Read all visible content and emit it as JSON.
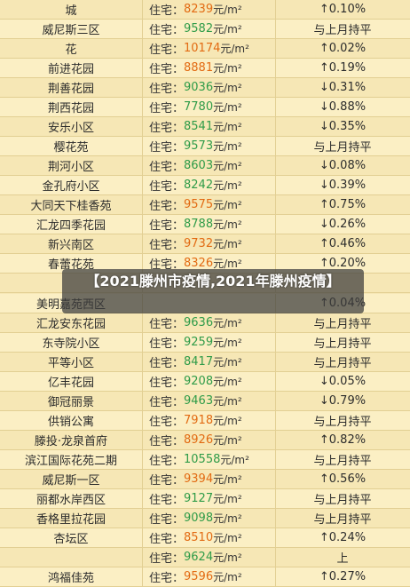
{
  "overlay_title": "【2021滕州市疫情,2021年滕州疫情】",
  "price_label": "住宅：",
  "unit": "元/m²",
  "rows": [
    {
      "name": "城",
      "price": "8239",
      "price_color": "orange",
      "change": "↑0.10%"
    },
    {
      "name": "威尼斯三区",
      "price": "9582",
      "price_color": "green",
      "change": "与上月持平"
    },
    {
      "name": "花",
      "price": "10174",
      "price_color": "orange",
      "change": "↑0.02%"
    },
    {
      "name": "前进花园",
      "price": "8881",
      "price_color": "orange",
      "change": "↑0.19%"
    },
    {
      "name": "荆善花园",
      "price": "9036",
      "price_color": "green",
      "change": "↓0.31%"
    },
    {
      "name": "荆西花园",
      "price": "7780",
      "price_color": "green",
      "change": "↓0.88%"
    },
    {
      "name": "安乐小区",
      "price": "8541",
      "price_color": "green",
      "change": "↓0.35%"
    },
    {
      "name": "樱花苑",
      "price": "9573",
      "price_color": "green",
      "change": "与上月持平"
    },
    {
      "name": "荆河小区",
      "price": "8603",
      "price_color": "green",
      "change": "↓0.08%"
    },
    {
      "name": "金孔府小区",
      "price": "8242",
      "price_color": "green",
      "change": "↓0.39%"
    },
    {
      "name": "大同天下桂香苑",
      "price": "9575",
      "price_color": "orange",
      "change": "↑0.75%"
    },
    {
      "name": "汇龙四季花园",
      "price": "8788",
      "price_color": "green",
      "change": "↓0.26%"
    },
    {
      "name": "新兴南区",
      "price": "9732",
      "price_color": "orange",
      "change": "↑0.46%"
    },
    {
      "name": "春蕾花苑",
      "price": "8326",
      "price_color": "orange",
      "change": "↑0.20%"
    },
    {
      "name": "",
      "price": "",
      "price_color": "green",
      "change": ""
    },
    {
      "name": "美明嘉苑西区",
      "price": "",
      "price_color": "orange",
      "change": "↑0.04%"
    },
    {
      "name": "汇龙安东花园",
      "price": "9636",
      "price_color": "green",
      "change": "与上月持平"
    },
    {
      "name": "东寺院小区",
      "price": "9259",
      "price_color": "green",
      "change": "与上月持平"
    },
    {
      "name": "平等小区",
      "price": "8417",
      "price_color": "green",
      "change": "与上月持平"
    },
    {
      "name": "亿丰花园",
      "price": "9208",
      "price_color": "green",
      "change": "↓0.05%"
    },
    {
      "name": "御冠丽景",
      "price": "9463",
      "price_color": "green",
      "change": "↓0.79%"
    },
    {
      "name": "供销公寓",
      "price": "7918",
      "price_color": "orange",
      "change": "与上月持平"
    },
    {
      "name": "滕投·龙泉首府",
      "price": "8926",
      "price_color": "orange",
      "change": "↑0.82%"
    },
    {
      "name": "滨江国际花苑二期",
      "price": "10558",
      "price_color": "green",
      "change": "与上月持平"
    },
    {
      "name": "威尼斯一区",
      "price": "9394",
      "price_color": "orange",
      "change": "↑0.56%"
    },
    {
      "name": "丽都水岸西区",
      "price": "9127",
      "price_color": "green",
      "change": "与上月持平"
    },
    {
      "name": "香格里拉花园",
      "price": "9098",
      "price_color": "green",
      "change": "与上月持平"
    },
    {
      "name": "杏坛区",
      "price": "8510",
      "price_color": "orange",
      "change": "↑0.24%"
    },
    {
      "name": "",
      "price": "9624",
      "price_color": "green",
      "change": "上"
    },
    {
      "name": "鸿福佳苑",
      "price": "9596",
      "price_color": "orange",
      "change": "↑0.27%"
    }
  ]
}
